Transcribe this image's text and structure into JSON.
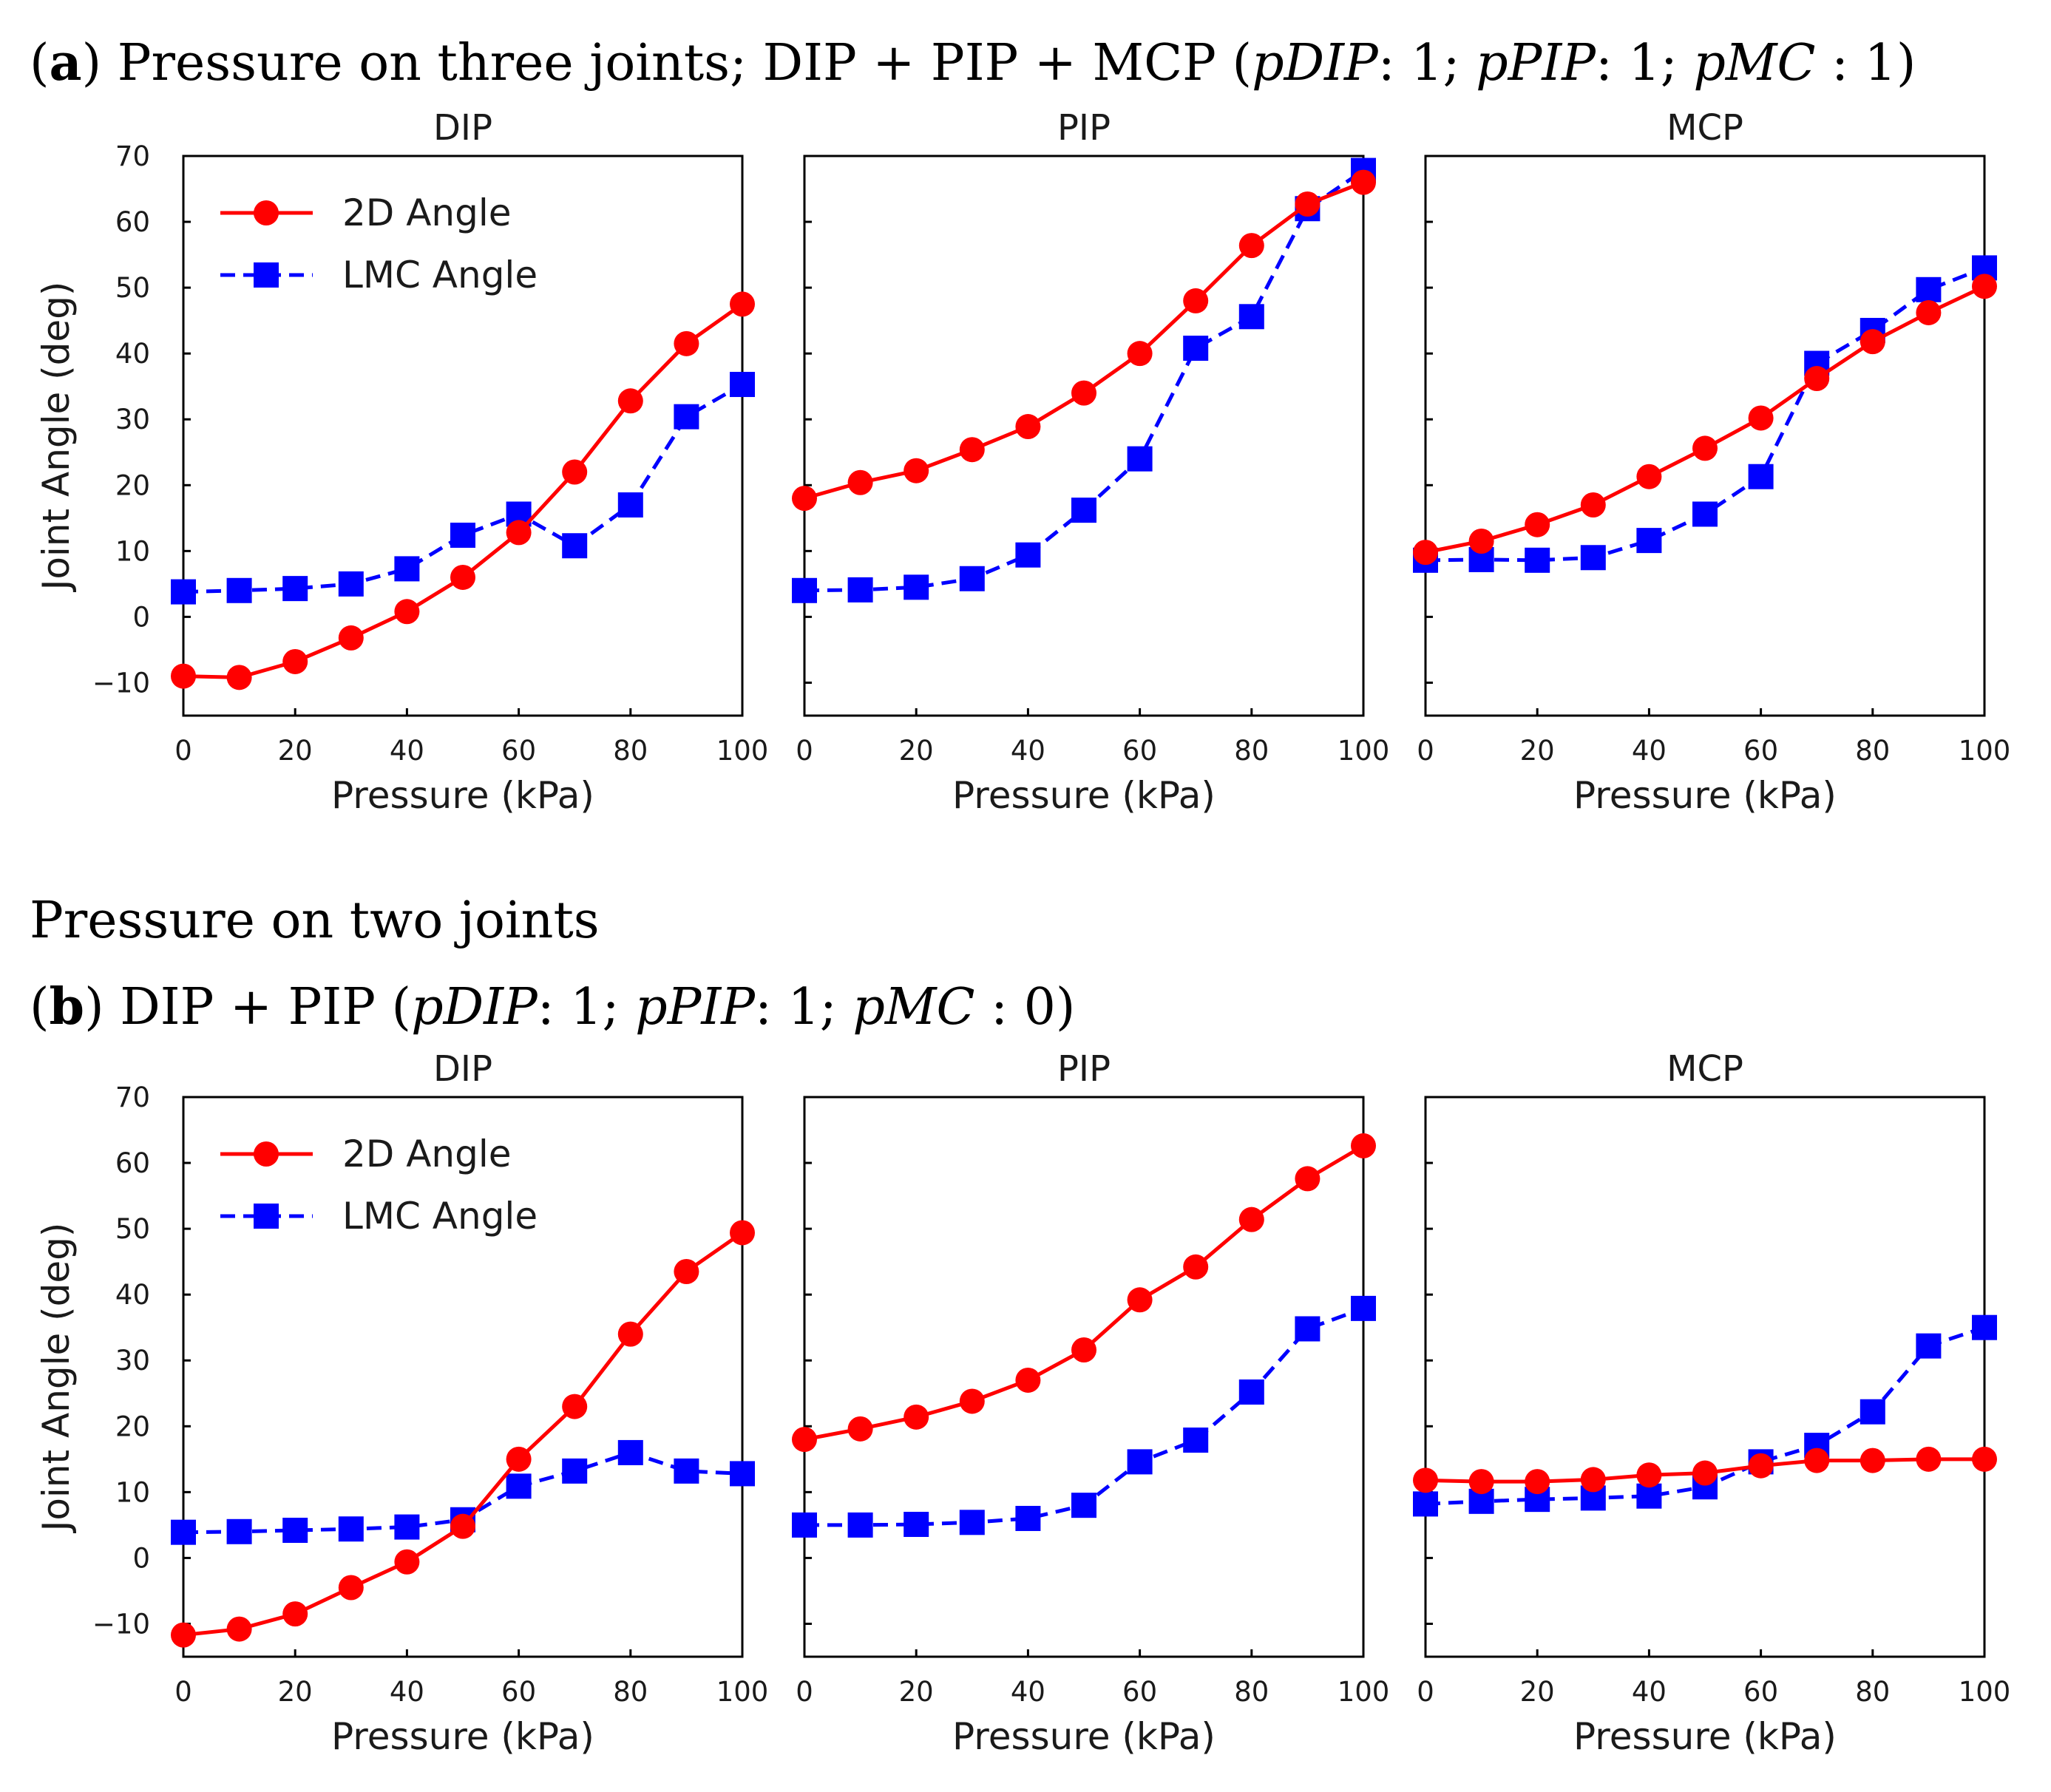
{
  "headings": {
    "a": {
      "label": "a",
      "text": "Pressure on three joints; DIP + PIP + MCP (",
      "param1": "pDIP",
      "val1": ": 1;",
      "param2": "pPIP",
      "val2": ": 1;",
      "param3": "pMC",
      "val3": ": 1)"
    },
    "section": "Pressure on two joints",
    "b": {
      "label": "b",
      "text": "DIP + PIP (",
      "param1": "pDIP",
      "val1": ": 1;",
      "param2": "pPIP",
      "val2": ": 1;",
      "param3": "pMC",
      "val3": ": 0)"
    }
  },
  "legend": {
    "series_2d": "2D Angle",
    "series_lmc": "LMC Angle"
  },
  "colors": {
    "series_2d": "#ff0000",
    "series_lmc": "#0000ff"
  },
  "chart_data": [
    {
      "id": "a-dip",
      "type": "line",
      "row": "a",
      "title": "DIP",
      "xlabel": "Pressure (kPa)",
      "ylabel": "Joint Angle (deg)",
      "xlim": [
        0,
        100
      ],
      "ylim": [
        -15,
        70
      ],
      "x": [
        0,
        10,
        20,
        30,
        40,
        50,
        60,
        70,
        80,
        90,
        100
      ],
      "xticks": [
        "0",
        "20",
        "40",
        "60",
        "80",
        "100"
      ],
      "yticks": [
        "−10",
        "0",
        "10",
        "20",
        "30",
        "40",
        "50",
        "60",
        "70"
      ],
      "series": [
        {
          "name": "2D Angle",
          "values": [
            -9,
            -9.2,
            -6.8,
            -3.2,
            0.8,
            6,
            12.8,
            22,
            32.8,
            41.5,
            47.5
          ]
        },
        {
          "name": "LMC Angle",
          "values": [
            3.8,
            4,
            4.3,
            5,
            7.3,
            12.4,
            15.6,
            10.8,
            17,
            30.4,
            35.3
          ]
        }
      ]
    },
    {
      "id": "a-pip",
      "type": "line",
      "row": "a",
      "title": "PIP",
      "xlabel": "Pressure (kPa)",
      "ylabel": "",
      "xlim": [
        0,
        100
      ],
      "ylim": [
        -15,
        70
      ],
      "x": [
        0,
        10,
        20,
        30,
        40,
        50,
        60,
        70,
        80,
        90,
        100
      ],
      "xticks": [
        "0",
        "20",
        "40",
        "60",
        "80",
        "100"
      ],
      "yticks": [],
      "series": [
        {
          "name": "2D Angle",
          "values": [
            18,
            20.4,
            22.2,
            25.4,
            28.9,
            34,
            40,
            48,
            56.4,
            62.7,
            66
          ]
        },
        {
          "name": "LMC Angle",
          "values": [
            4,
            4.1,
            4.5,
            5.8,
            9.4,
            16.2,
            24,
            40.8,
            45.6,
            62,
            67.8
          ]
        }
      ]
    },
    {
      "id": "a-mcp",
      "type": "line",
      "row": "a",
      "title": "MCP",
      "xlabel": "Pressure (kPa)",
      "ylabel": "",
      "xlim": [
        0,
        100
      ],
      "ylim": [
        -15,
        70
      ],
      "x": [
        0,
        10,
        20,
        30,
        40,
        50,
        60,
        70,
        80,
        90,
        100
      ],
      "xticks": [
        "0",
        "20",
        "40",
        "60",
        "80",
        "100"
      ],
      "yticks": [],
      "series": [
        {
          "name": "2D Angle",
          "values": [
            9.8,
            11.5,
            14,
            17,
            21.3,
            25.6,
            30.2,
            36.2,
            41.8,
            46.2,
            50.2
          ]
        },
        {
          "name": "LMC Angle",
          "values": [
            8.6,
            8.7,
            8.6,
            9,
            11.6,
            15.6,
            21.3,
            38.5,
            43.5,
            49.7,
            53
          ]
        }
      ]
    },
    {
      "id": "b-dip",
      "type": "line",
      "row": "b",
      "title": "DIP",
      "xlabel": "Pressure (kPa)",
      "ylabel": "Joint Angle (deg)",
      "xlim": [
        0,
        100
      ],
      "ylim": [
        -15,
        70
      ],
      "x": [
        0,
        10,
        20,
        30,
        40,
        50,
        60,
        70,
        80,
        90,
        100
      ],
      "xticks": [
        "0",
        "20",
        "40",
        "60",
        "80",
        "100"
      ],
      "yticks": [
        "−10",
        "0",
        "10",
        "20",
        "30",
        "40",
        "50",
        "60",
        "70"
      ],
      "series": [
        {
          "name": "2D Angle",
          "values": [
            -11.7,
            -10.8,
            -8.5,
            -4.5,
            -0.6,
            4.8,
            15,
            23,
            34,
            43.5,
            49.4
          ]
        },
        {
          "name": "LMC Angle",
          "values": [
            3.9,
            4,
            4.2,
            4.4,
            4.7,
            5.8,
            10.9,
            13.2,
            16,
            13.2,
            12.8
          ]
        }
      ]
    },
    {
      "id": "b-pip",
      "type": "line",
      "row": "b",
      "title": "PIP",
      "xlabel": "Pressure (kPa)",
      "ylabel": "",
      "xlim": [
        0,
        100
      ],
      "ylim": [
        -15,
        70
      ],
      "x": [
        0,
        10,
        20,
        30,
        40,
        50,
        60,
        70,
        80,
        90,
        100
      ],
      "xticks": [
        "0",
        "20",
        "40",
        "60",
        "80",
        "100"
      ],
      "yticks": [],
      "series": [
        {
          "name": "2D Angle",
          "values": [
            18,
            19.6,
            21.4,
            23.8,
            27,
            31.6,
            39.2,
            44.2,
            51.4,
            57.6,
            62.6
          ]
        },
        {
          "name": "LMC Angle",
          "values": [
            5,
            5,
            5.1,
            5.4,
            6,
            8,
            14.6,
            17.9,
            25.2,
            34.8,
            37.9
          ]
        }
      ]
    },
    {
      "id": "b-mcp",
      "type": "line",
      "row": "b",
      "title": "MCP",
      "xlabel": "Pressure (kPa)",
      "ylabel": "",
      "xlim": [
        0,
        100
      ],
      "ylim": [
        -15,
        70
      ],
      "x": [
        0,
        10,
        20,
        30,
        40,
        50,
        60,
        70,
        80,
        90,
        100
      ],
      "xticks": [
        "0",
        "20",
        "40",
        "60",
        "80",
        "100"
      ],
      "yticks": [],
      "series": [
        {
          "name": "2D Angle",
          "values": [
            11.8,
            11.6,
            11.6,
            11.9,
            12.6,
            12.9,
            14,
            14.8,
            14.8,
            15,
            15
          ]
        },
        {
          "name": "LMC Angle",
          "values": [
            8.2,
            8.6,
            8.9,
            9.1,
            9.4,
            10.8,
            14.6,
            17.1,
            22.2,
            32.2,
            35
          ]
        }
      ]
    }
  ]
}
